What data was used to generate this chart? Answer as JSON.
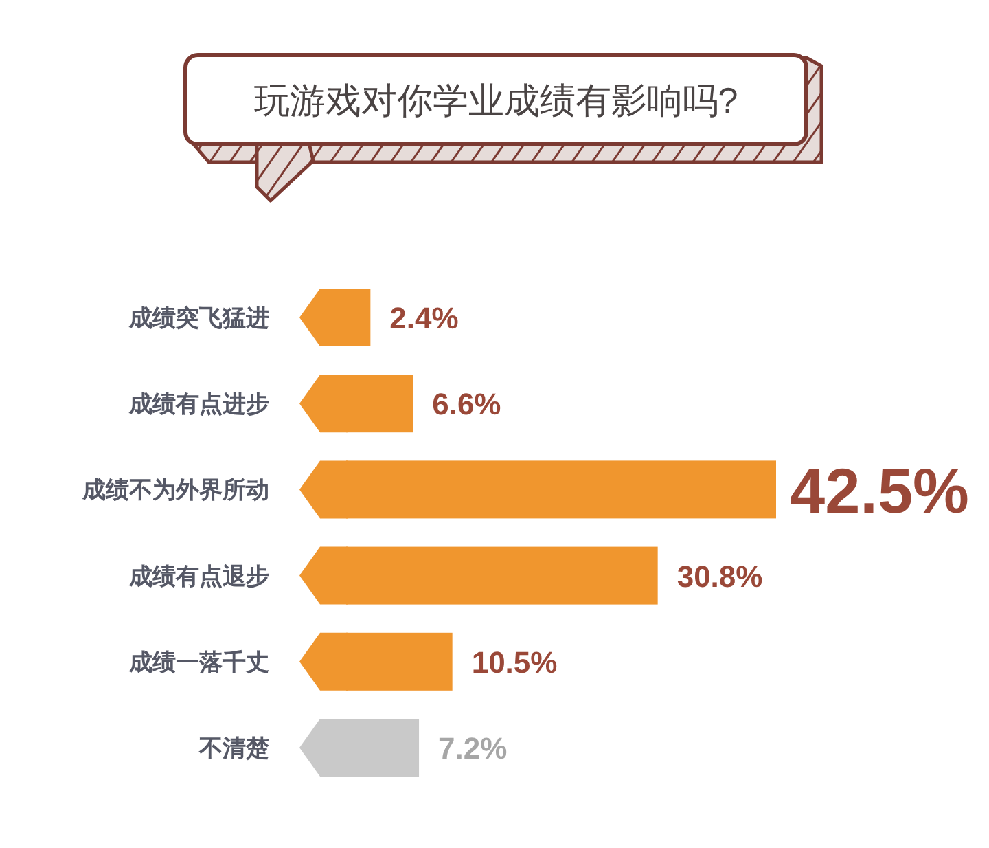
{
  "chart_data": {
    "type": "bar",
    "orientation": "horizontal",
    "title": "玩游戏对你学业成绩有影响吗?",
    "categories": [
      "成绩突飞猛进",
      "成绩有点进步",
      "成绩不为外界所动",
      "成绩有点退步",
      "成绩一落千丈",
      "不清楚"
    ],
    "values": [
      2.4,
      6.6,
      42.5,
      30.8,
      10.5,
      7.2
    ],
    "colors": [
      "#f0962e",
      "#f0962e",
      "#f0962e",
      "#f0962e",
      "#f0962e",
      "#c9c9c9"
    ],
    "value_labels": [
      "2.4%",
      "6.6%",
      "42.5%",
      "30.8%",
      "10.5%",
      "7.2%"
    ]
  }
}
